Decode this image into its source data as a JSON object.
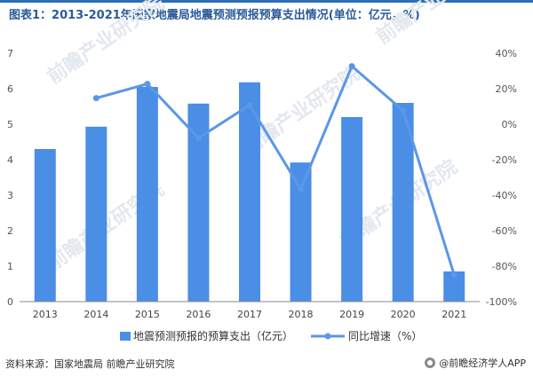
{
  "title": "图表1：2013-2021年国家地震局地震预测预报预算支出情况(单位：亿元，%)",
  "source": "资料来源：国家地震局 前瞻产业研究院",
  "brand": "@前瞻经济学人APP",
  "watermark": "前瞻产业研究院",
  "colors": {
    "bar": "#4a8ee6",
    "line": "#5b97e8",
    "title": "#2b5b9a"
  },
  "chart_data": {
    "type": "bar+line",
    "categories": [
      "2013",
      "2014",
      "2015",
      "2016",
      "2017",
      "2018",
      "2019",
      "2020",
      "2021"
    ],
    "series": [
      {
        "name": "地震预测预报的预算支出（亿元）",
        "type": "bar",
        "axis": "left",
        "values": [
          4.3,
          4.93,
          6.05,
          5.58,
          6.18,
          3.92,
          5.2,
          5.6,
          0.85
        ]
      },
      {
        "name": "同比增速（%）",
        "type": "line",
        "axis": "right",
        "values": [
          null,
          14.7,
          22.7,
          -7.8,
          10.8,
          -36.6,
          32.7,
          7.7,
          -84.8
        ]
      }
    ],
    "left_axis": {
      "min": 0,
      "max": 7,
      "ticks": [
        "0",
        "1",
        "2",
        "3",
        "4",
        "5",
        "6",
        "7"
      ]
    },
    "right_axis": {
      "min": -100,
      "max": 40,
      "ticks": [
        "-100%",
        "-80%",
        "-60%",
        "-40%",
        "-20%",
        "0%",
        "20%",
        "40%"
      ]
    },
    "legend_position": "bottom",
    "grid": false
  }
}
